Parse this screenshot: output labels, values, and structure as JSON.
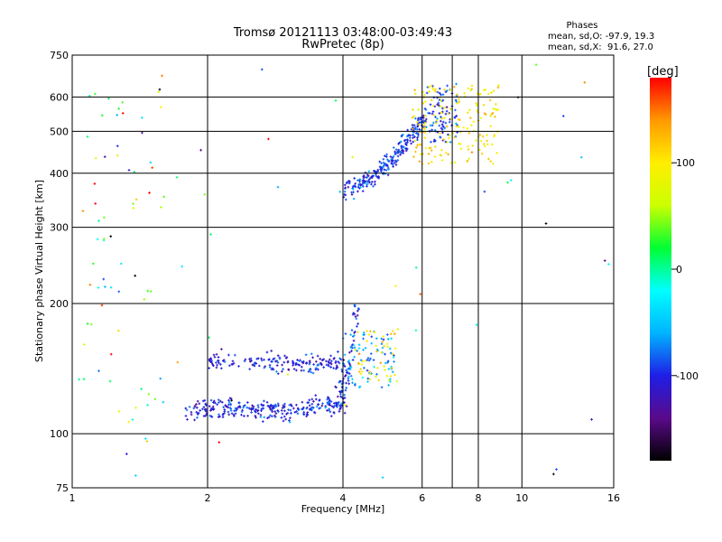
{
  "chart_data": {
    "type": "scatter",
    "title": "Tromsø 20121113 03:48:00-03:49:43",
    "subtitle": "RwPretec (8p)",
    "xlabel": "Frequency [MHz]",
    "ylabel": "Stationary phase Virtual Height [km]",
    "x_scale": "log",
    "y_scale": "log",
    "xlim": [
      1,
      16
    ],
    "ylim": [
      75,
      750
    ],
    "x_ticks": [
      1,
      2,
      4,
      6,
      8,
      10,
      16
    ],
    "x_gridlines": [
      2,
      4,
      6,
      7,
      8,
      10
    ],
    "y_ticks": [
      75,
      100,
      200,
      300,
      400,
      500,
      600,
      750
    ],
    "y_gridlines": [
      100,
      200,
      300,
      400,
      500,
      600
    ],
    "grid": true,
    "phases_box": {
      "title": "Phases",
      "line_o": "mean, sd,O: -97.9, 19.3",
      "line_x": "mean, sd,X:  91.6, 27.0"
    },
    "colorbar": {
      "label": "[deg]",
      "range": [
        -180,
        180
      ],
      "ticks": [
        100,
        0,
        -100
      ],
      "colormap": [
        "#000000",
        "#5a0a8a",
        "#1e1ee6",
        "#00b4ff",
        "#00ffff",
        "#00ff33",
        "#ccff00",
        "#ffee00",
        "#ff9900",
        "#ff0000"
      ],
      "placement": "right"
    },
    "clusters": [
      {
        "name": "E-layer O-trace",
        "x": [
          1.78,
          4.05
        ],
        "y": [
          108,
          130
        ],
        "phase_mean": -100,
        "count": 300,
        "curve": "e_o"
      },
      {
        "name": "E-layer upper trace",
        "x": [
          2.0,
          4.0
        ],
        "y": [
          138,
          150
        ],
        "phase_mean": -105,
        "count": 180,
        "curve": "e_up"
      },
      {
        "name": "E-layer rise",
        "x": [
          3.9,
          4.3
        ],
        "y": [
          128,
          205
        ],
        "phase_mean": -95,
        "count": 70,
        "curve": "rise"
      },
      {
        "name": "E-layer extension",
        "x": [
          4.0,
          5.2
        ],
        "y": [
          128,
          175
        ],
        "phase_mean": -60,
        "count": 80,
        "curve": "blob"
      },
      {
        "name": "E-layer X-trace",
        "x": [
          4.3,
          5.3
        ],
        "y": [
          132,
          175
        ],
        "phase_mean": 105,
        "count": 45,
        "curve": "blob"
      },
      {
        "name": "F-layer O-trace",
        "x": [
          4.0,
          6.1
        ],
        "y": [
          365,
          540
        ],
        "phase_mean": -95,
        "count": 260,
        "curve": "f_o"
      },
      {
        "name": "F-layer cusp",
        "x": [
          6.1,
          7.2
        ],
        "y": [
          470,
          640
        ],
        "phase_mean": -90,
        "count": 90,
        "curve": "blob"
      },
      {
        "name": "F-layer X-trace",
        "x": [
          5.7,
          8.9
        ],
        "y": [
          420,
          640
        ],
        "phase_mean": 105,
        "count": 170,
        "curve": "blob"
      },
      {
        "name": "Low-frequency noise",
        "x": [
          1.05,
          1.6
        ],
        "y": [
          90,
          650
        ],
        "phase_mean": 50,
        "phase_sd": 120,
        "count": 60,
        "curve": "blob"
      },
      {
        "name": "Scattered noise",
        "x": [
          1.0,
          16.0
        ],
        "y": [
          78,
          720
        ],
        "phase_mean": 0,
        "phase_sd": 120,
        "count": 55,
        "curve": "blob"
      }
    ]
  }
}
